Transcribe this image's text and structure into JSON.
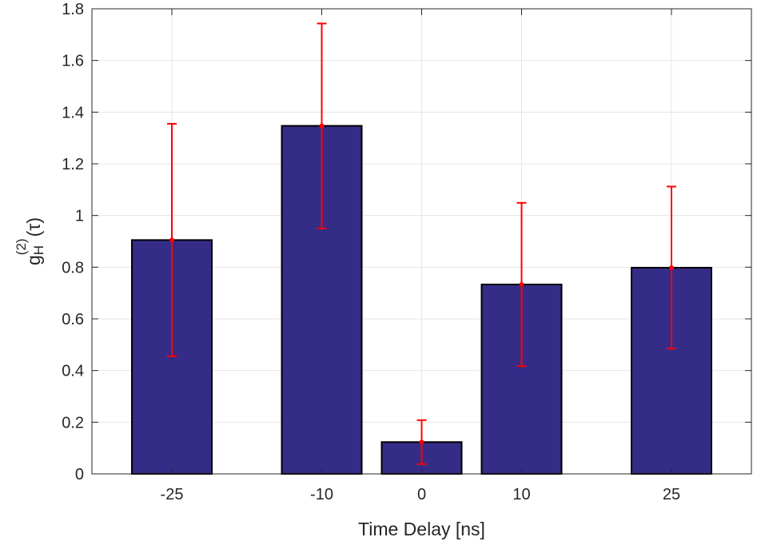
{
  "chart_data": {
    "type": "bar",
    "title": "",
    "xlabel": "Time Delay [ns]",
    "ylabel": {
      "base": "g",
      "superscript": "(2)",
      "subscript": "H",
      "argument": "(τ)"
    },
    "xlim": [
      -33,
      33
    ],
    "ylim": [
      0,
      1.8
    ],
    "x_ticks": [
      -25,
      -10,
      0,
      10,
      25
    ],
    "y_ticks": [
      0,
      0.2,
      0.4,
      0.6,
      0.8,
      1,
      1.2,
      1.4,
      1.6,
      1.8
    ],
    "bar_width": 8,
    "grid": true,
    "bars": [
      {
        "x": -25,
        "value": 0.905,
        "error_low": 0.455,
        "error_high": 1.355
      },
      {
        "x": -10,
        "value": 1.347,
        "error_low": 0.95,
        "error_high": 1.743
      },
      {
        "x": 0,
        "value": 0.123,
        "error_low": 0.038,
        "error_high": 0.208
      },
      {
        "x": 10,
        "value": 0.733,
        "error_low": 0.417,
        "error_high": 1.049
      },
      {
        "x": 25,
        "value": 0.798,
        "error_low": 0.485,
        "error_high": 1.112
      }
    ],
    "colors": {
      "bar_fill": "#352C87",
      "bar_edge": "#000000",
      "error_bar": "#FF0000",
      "grid": "#E6E6E6",
      "axis": "#262626"
    }
  }
}
